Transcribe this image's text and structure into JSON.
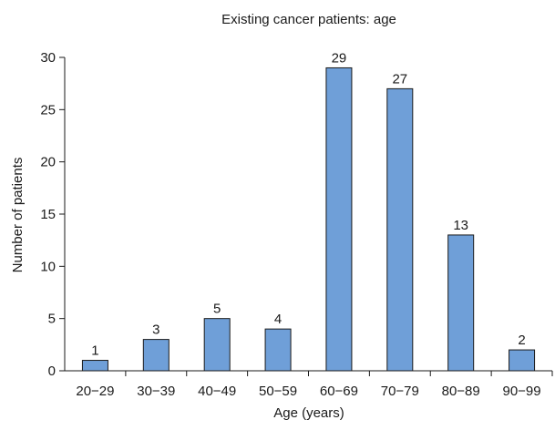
{
  "chart_data": {
    "type": "bar",
    "title": "Existing cancer patients: age",
    "xlabel": "Age (years)",
    "ylabel": "Number of patients",
    "categories": [
      "20−29",
      "30−39",
      "40−49",
      "50−59",
      "60−69",
      "70−79",
      "80−89",
      "90−99"
    ],
    "values": [
      1,
      3,
      5,
      4,
      29,
      27,
      13,
      2
    ],
    "ylim": [
      0,
      30
    ],
    "yticks": [
      0,
      5,
      10,
      15,
      20,
      25,
      30
    ],
    "grid": false,
    "legend": "none",
    "colors": {
      "bar_fill": "#6f9fd8",
      "bar_stroke": "#1a1a1a",
      "axis": "#1a1a1a"
    }
  }
}
